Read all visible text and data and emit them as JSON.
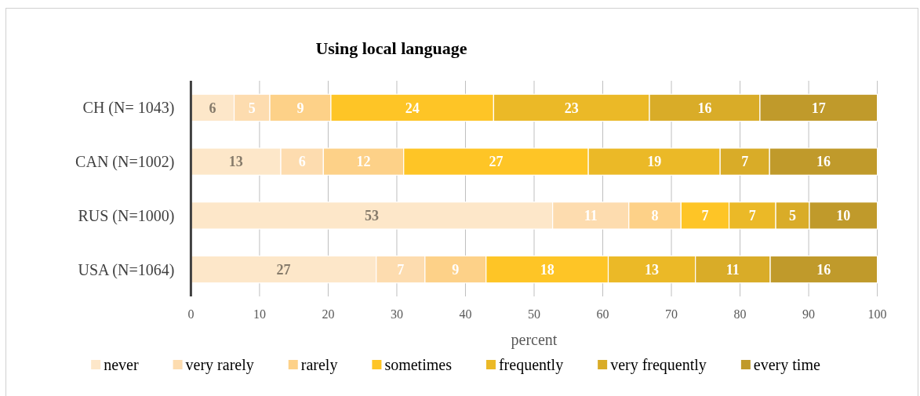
{
  "chart_data": {
    "type": "bar",
    "orientation": "horizontal",
    "stacked": true,
    "title": "Using local language",
    "xlabel": "percent",
    "categories": [
      "CH (N= 1043)",
      "CAN (N=1002)",
      "RUS (N=1000)",
      "USA (N=1064)"
    ],
    "xlim": [
      0,
      100
    ],
    "xticks": [
      0,
      10,
      20,
      30,
      40,
      50,
      60,
      70,
      80,
      90,
      100
    ],
    "grid": "x",
    "legend": "bottom",
    "series": [
      {
        "name": "never",
        "color": "#fde7c9",
        "values": [
          6.3,
          13.1,
          52.7,
          27.0
        ],
        "value_labels": [
          "6",
          "13",
          "53",
          "27"
        ]
      },
      {
        "name": "very rarely",
        "color": "#fddcaf",
        "values": [
          5.2,
          6.2,
          11.1,
          7.1
        ],
        "value_labels": [
          "5",
          "6",
          "11",
          "7"
        ]
      },
      {
        "name": "rarely",
        "color": "#fdd188",
        "values": [
          8.9,
          11.7,
          7.6,
          8.9
        ],
        "value_labels": [
          "9",
          "12",
          "8",
          "9"
        ]
      },
      {
        "name": "sometimes",
        "color": "#fec526",
        "values": [
          23.7,
          26.9,
          7.0,
          17.8
        ],
        "value_labels": [
          "24",
          "27",
          "7",
          "18"
        ]
      },
      {
        "name": "frequently",
        "color": "#ebb927",
        "values": [
          22.7,
          19.2,
          6.8,
          12.7
        ],
        "value_labels": [
          "23",
          "19",
          "7",
          "13"
        ]
      },
      {
        "name": "very frequently",
        "color": "#d9ac28",
        "values": [
          16.1,
          7.2,
          4.9,
          10.9
        ],
        "value_labels": [
          "16",
          "7",
          "5",
          "11"
        ]
      },
      {
        "name": "every time",
        "color": "#c09a2b",
        "values": [
          17.1,
          15.7,
          9.9,
          15.6
        ],
        "value_labels": [
          "17",
          "16",
          "10",
          "16"
        ]
      }
    ]
  }
}
